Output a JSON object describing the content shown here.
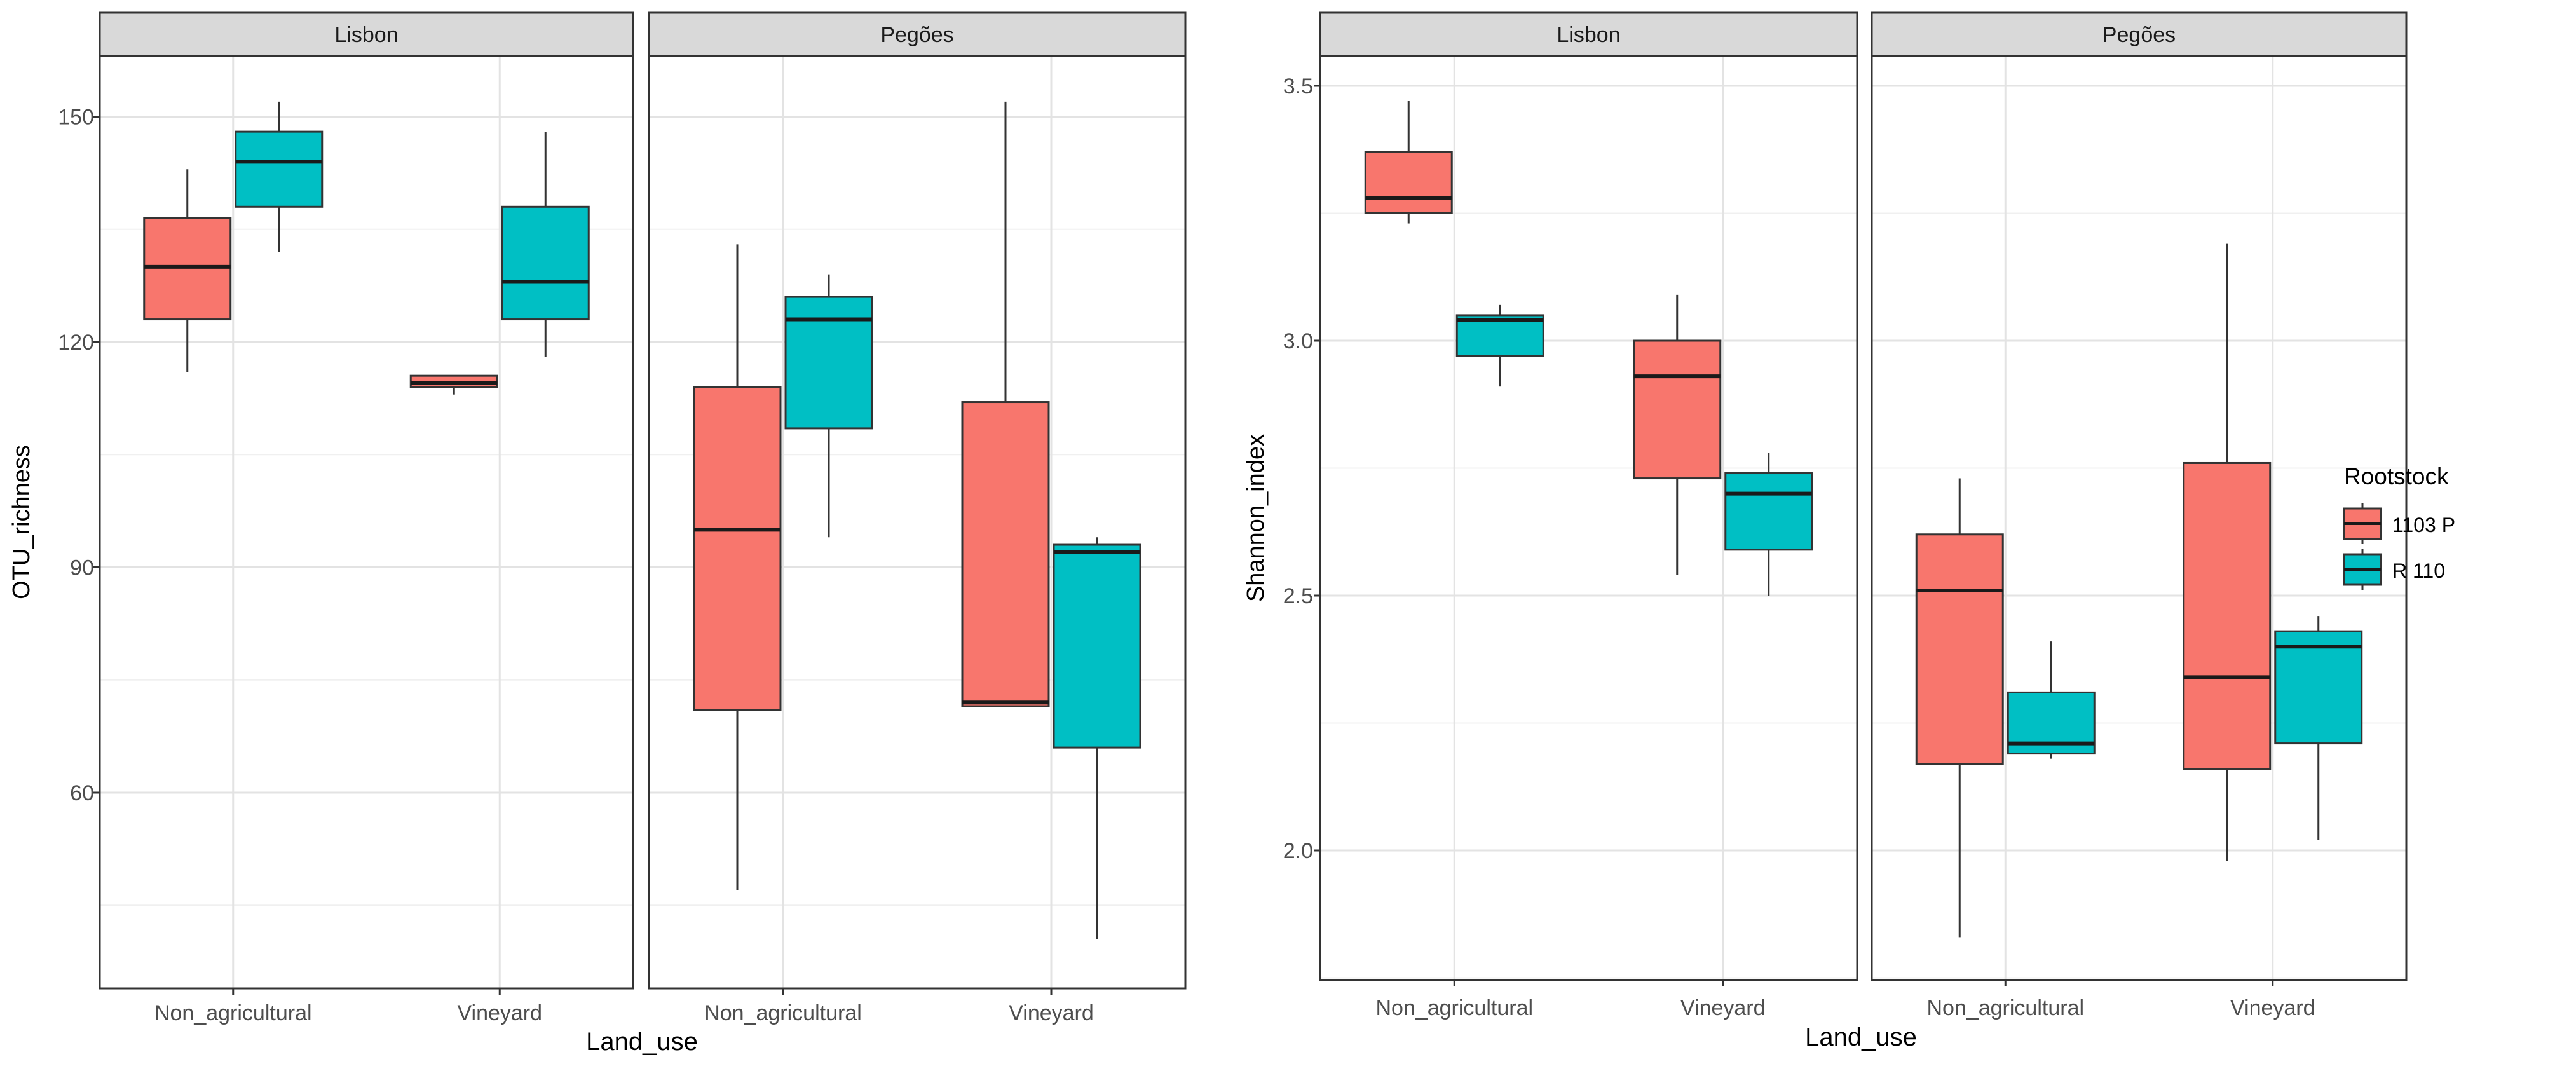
{
  "legend": {
    "title": "Rootstock",
    "entries": [
      {
        "label": "1103 P",
        "color": "#F8766D"
      },
      {
        "label": "R 110",
        "color": "#00BFC4"
      }
    ]
  },
  "chart_data": [
    {
      "type": "boxplot",
      "xlabel": "Land_use",
      "ylabel": "OTU_richness",
      "categories": [
        "Non_agricultural",
        "Vineyard"
      ],
      "yticks": [
        60,
        90,
        120,
        150
      ],
      "ylim": [
        32,
        158
      ],
      "facets": [
        {
          "title": "Lisbon",
          "boxes": [
            {
              "category": "Non_agricultural",
              "group": "1103 P",
              "min": 116,
              "q1": 123,
              "median": 130,
              "q3": 136.5,
              "max": 143
            },
            {
              "category": "Non_agricultural",
              "group": "R 110",
              "min": 132,
              "q1": 138,
              "median": 144,
              "q3": 148,
              "max": 152
            },
            {
              "category": "Vineyard",
              "group": "1103 P",
              "min": 113,
              "q1": 114,
              "median": 114.5,
              "q3": 115.5,
              "max": 115.5
            },
            {
              "category": "Vineyard",
              "group": "R 110",
              "min": 118,
              "q1": 123,
              "median": 128,
              "q3": 138,
              "max": 148
            }
          ]
        },
        {
          "title": "Pegões",
          "boxes": [
            {
              "category": "Non_agricultural",
              "group": "1103 P",
              "min": 47,
              "q1": 71,
              "median": 95,
              "q3": 114,
              "max": 133
            },
            {
              "category": "Non_agricultural",
              "group": "R 110",
              "min": 94,
              "q1": 108.5,
              "median": 123,
              "q3": 126,
              "max": 129
            },
            {
              "category": "Vineyard",
              "group": "1103 P",
              "min": 71.5,
              "q1": 71.5,
              "median": 72,
              "q3": 112,
              "max": 152
            },
            {
              "category": "Vineyard",
              "group": "R 110",
              "min": 40.5,
              "q1": 66,
              "median": 92,
              "q3": 93,
              "max": 94
            }
          ]
        }
      ]
    },
    {
      "type": "boxplot",
      "xlabel": "Land_use",
      "ylabel": "Shannon_index",
      "categories": [
        "Non_agricultural",
        "Vineyard"
      ],
      "yticks": [
        "2.0",
        "2.5",
        "3.0",
        "3.5"
      ],
      "ylim": [
        1.75,
        3.62
      ],
      "facets": [
        {
          "title": "Lisbon",
          "boxes": [
            {
              "category": "Non_agricultural",
              "group": "1103 P",
              "min": 3.23,
              "q1": 3.25,
              "median": 3.28,
              "q3": 3.37,
              "max": 3.47
            },
            {
              "category": "Non_agricultural",
              "group": "R 110",
              "min": 2.91,
              "q1": 2.97,
              "median": 3.04,
              "q3": 3.05,
              "max": 3.07
            },
            {
              "category": "Vineyard",
              "group": "1103 P",
              "min": 2.54,
              "q1": 2.73,
              "median": 2.93,
              "q3": 3.0,
              "max": 3.09
            },
            {
              "category": "Vineyard",
              "group": "R 110",
              "min": 2.5,
              "q1": 2.59,
              "median": 2.7,
              "q3": 2.74,
              "max": 2.78
            }
          ]
        },
        {
          "title": "Pegões",
          "boxes": [
            {
              "category": "Non_agricultural",
              "group": "1103 P",
              "min": 1.83,
              "q1": 2.17,
              "median": 2.51,
              "q3": 2.62,
              "max": 2.73
            },
            {
              "category": "Non_agricultural",
              "group": "R 110",
              "min": 2.18,
              "q1": 2.19,
              "median": 2.21,
              "q3": 2.31,
              "max": 2.41
            },
            {
              "category": "Vineyard",
              "group": "1103 P",
              "min": 1.98,
              "q1": 2.16,
              "median": 2.34,
              "q3": 2.76,
              "max": 3.19
            },
            {
              "category": "Vineyard",
              "group": "R 110",
              "min": 2.02,
              "q1": 2.21,
              "median": 2.4,
              "q3": 2.43,
              "max": 2.46
            }
          ]
        }
      ]
    }
  ]
}
